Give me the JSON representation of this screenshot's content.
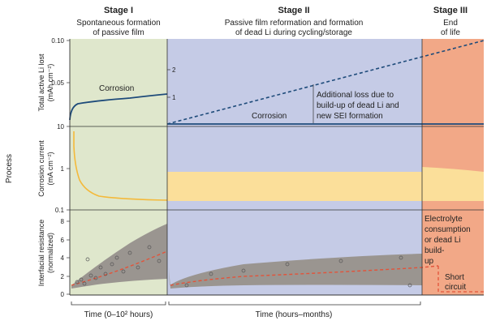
{
  "stages": [
    {
      "title": "Stage I",
      "line1": "Spontaneous formation",
      "line2": "of passive film"
    },
    {
      "title": "Stage II",
      "line1": "Passive film reformation and formation",
      "line2": "of dead Li during cycling/storage"
    },
    {
      "title": "Stage III",
      "line1": "End",
      "line2": "of life"
    }
  ],
  "process_label": "Process",
  "panels": {
    "top": {
      "ylabel1": "Total active Li lost",
      "ylabel2": "(mAh cm⁻²)",
      "left_ticks": [
        "0.10",
        "0.05",
        "10"
      ],
      "right_ticks": [
        "2",
        "1"
      ],
      "corrosion_label_1": "Corrosion",
      "corrosion_label_2": "Corrosion",
      "annotation": [
        "Additional loss due to",
        "build-up of dead Li and",
        "new SEI formation"
      ]
    },
    "middle": {
      "ylabel1": "Corrosion current",
      "ylabel2": "(mA cm⁻²)",
      "ticks": [
        "1",
        "0.1"
      ]
    },
    "bottom": {
      "ylabel1": "Interfacial resistance",
      "ylabel2": "(normalized)",
      "ticks": [
        "8",
        "6",
        "4",
        "2",
        "0"
      ],
      "annotation_eol": [
        "Electrolyte",
        "consumption",
        "or dead Li",
        "build-",
        "up"
      ],
      "annotation_short": [
        "Short",
        "circuit"
      ]
    }
  },
  "xlabels": [
    "Time (0–10² hours)",
    "Time (hours–months)"
  ],
  "colors": {
    "stage1_bg": "#dfe7cc",
    "stage2_bg": "#c5cbe6",
    "stage3_bg": "#f2a887",
    "corrosion_line": "#1e4b7a",
    "current_band": "#fbdf9a",
    "current_line": "#f4b93a",
    "resistance_band": "#9a9590",
    "resistance_trend": "#e2533a"
  }
}
